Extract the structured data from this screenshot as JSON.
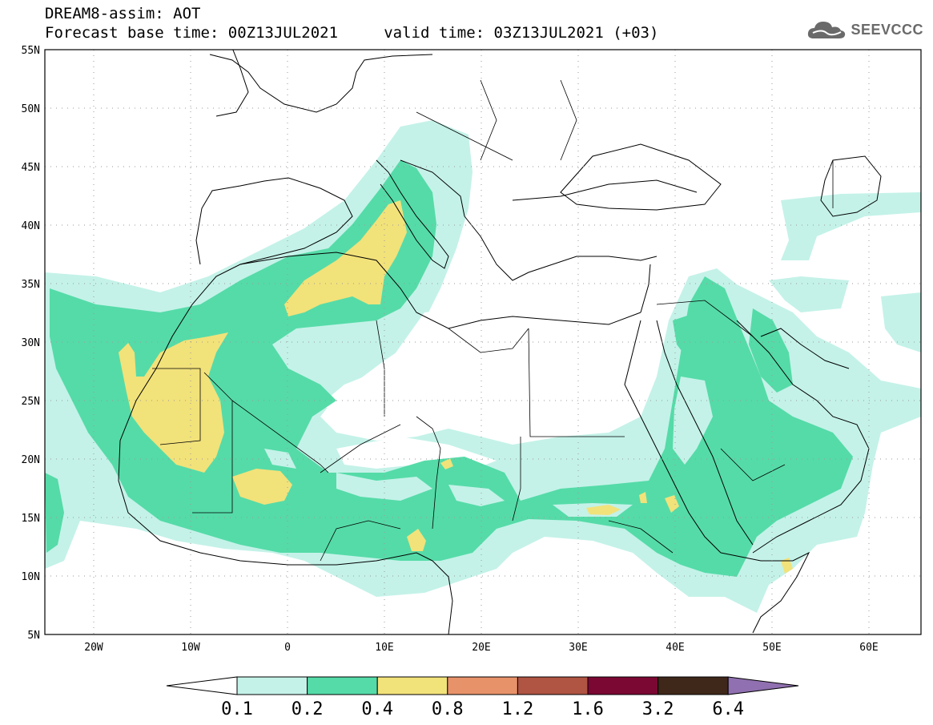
{
  "header": {
    "line1": "DREAM8-assim: AOT",
    "line2": "Forecast base time: 00Z13JUL2021     valid time: 03Z13JUL2021 (+03)"
  },
  "logo": {
    "text": "SEEVCCC",
    "icon": "cloud-icon"
  },
  "map": {
    "lon_range": [
      -25,
      65
    ],
    "lat_range": [
      5,
      55
    ],
    "lon_ticks": [
      "20W",
      "10W",
      "0",
      "10E",
      "20E",
      "30E",
      "40E",
      "50E",
      "60E"
    ],
    "lat_ticks": [
      "55N",
      "50N",
      "45N",
      "40N",
      "35N",
      "30N",
      "25N",
      "20N",
      "15N",
      "10N",
      "5N"
    ],
    "grid": "dotted"
  },
  "colorbar": {
    "labels": [
      "0.1",
      "0.2",
      "0.4",
      "0.8",
      "1.2",
      "1.6",
      "3.2",
      "6.4"
    ],
    "colors": [
      "#ffffff",
      "#c4f2e8",
      "#55dba8",
      "#f2e27a",
      "#e8926a",
      "#b05443",
      "#7b0833",
      "#3f2819",
      "#9070b0"
    ]
  }
}
